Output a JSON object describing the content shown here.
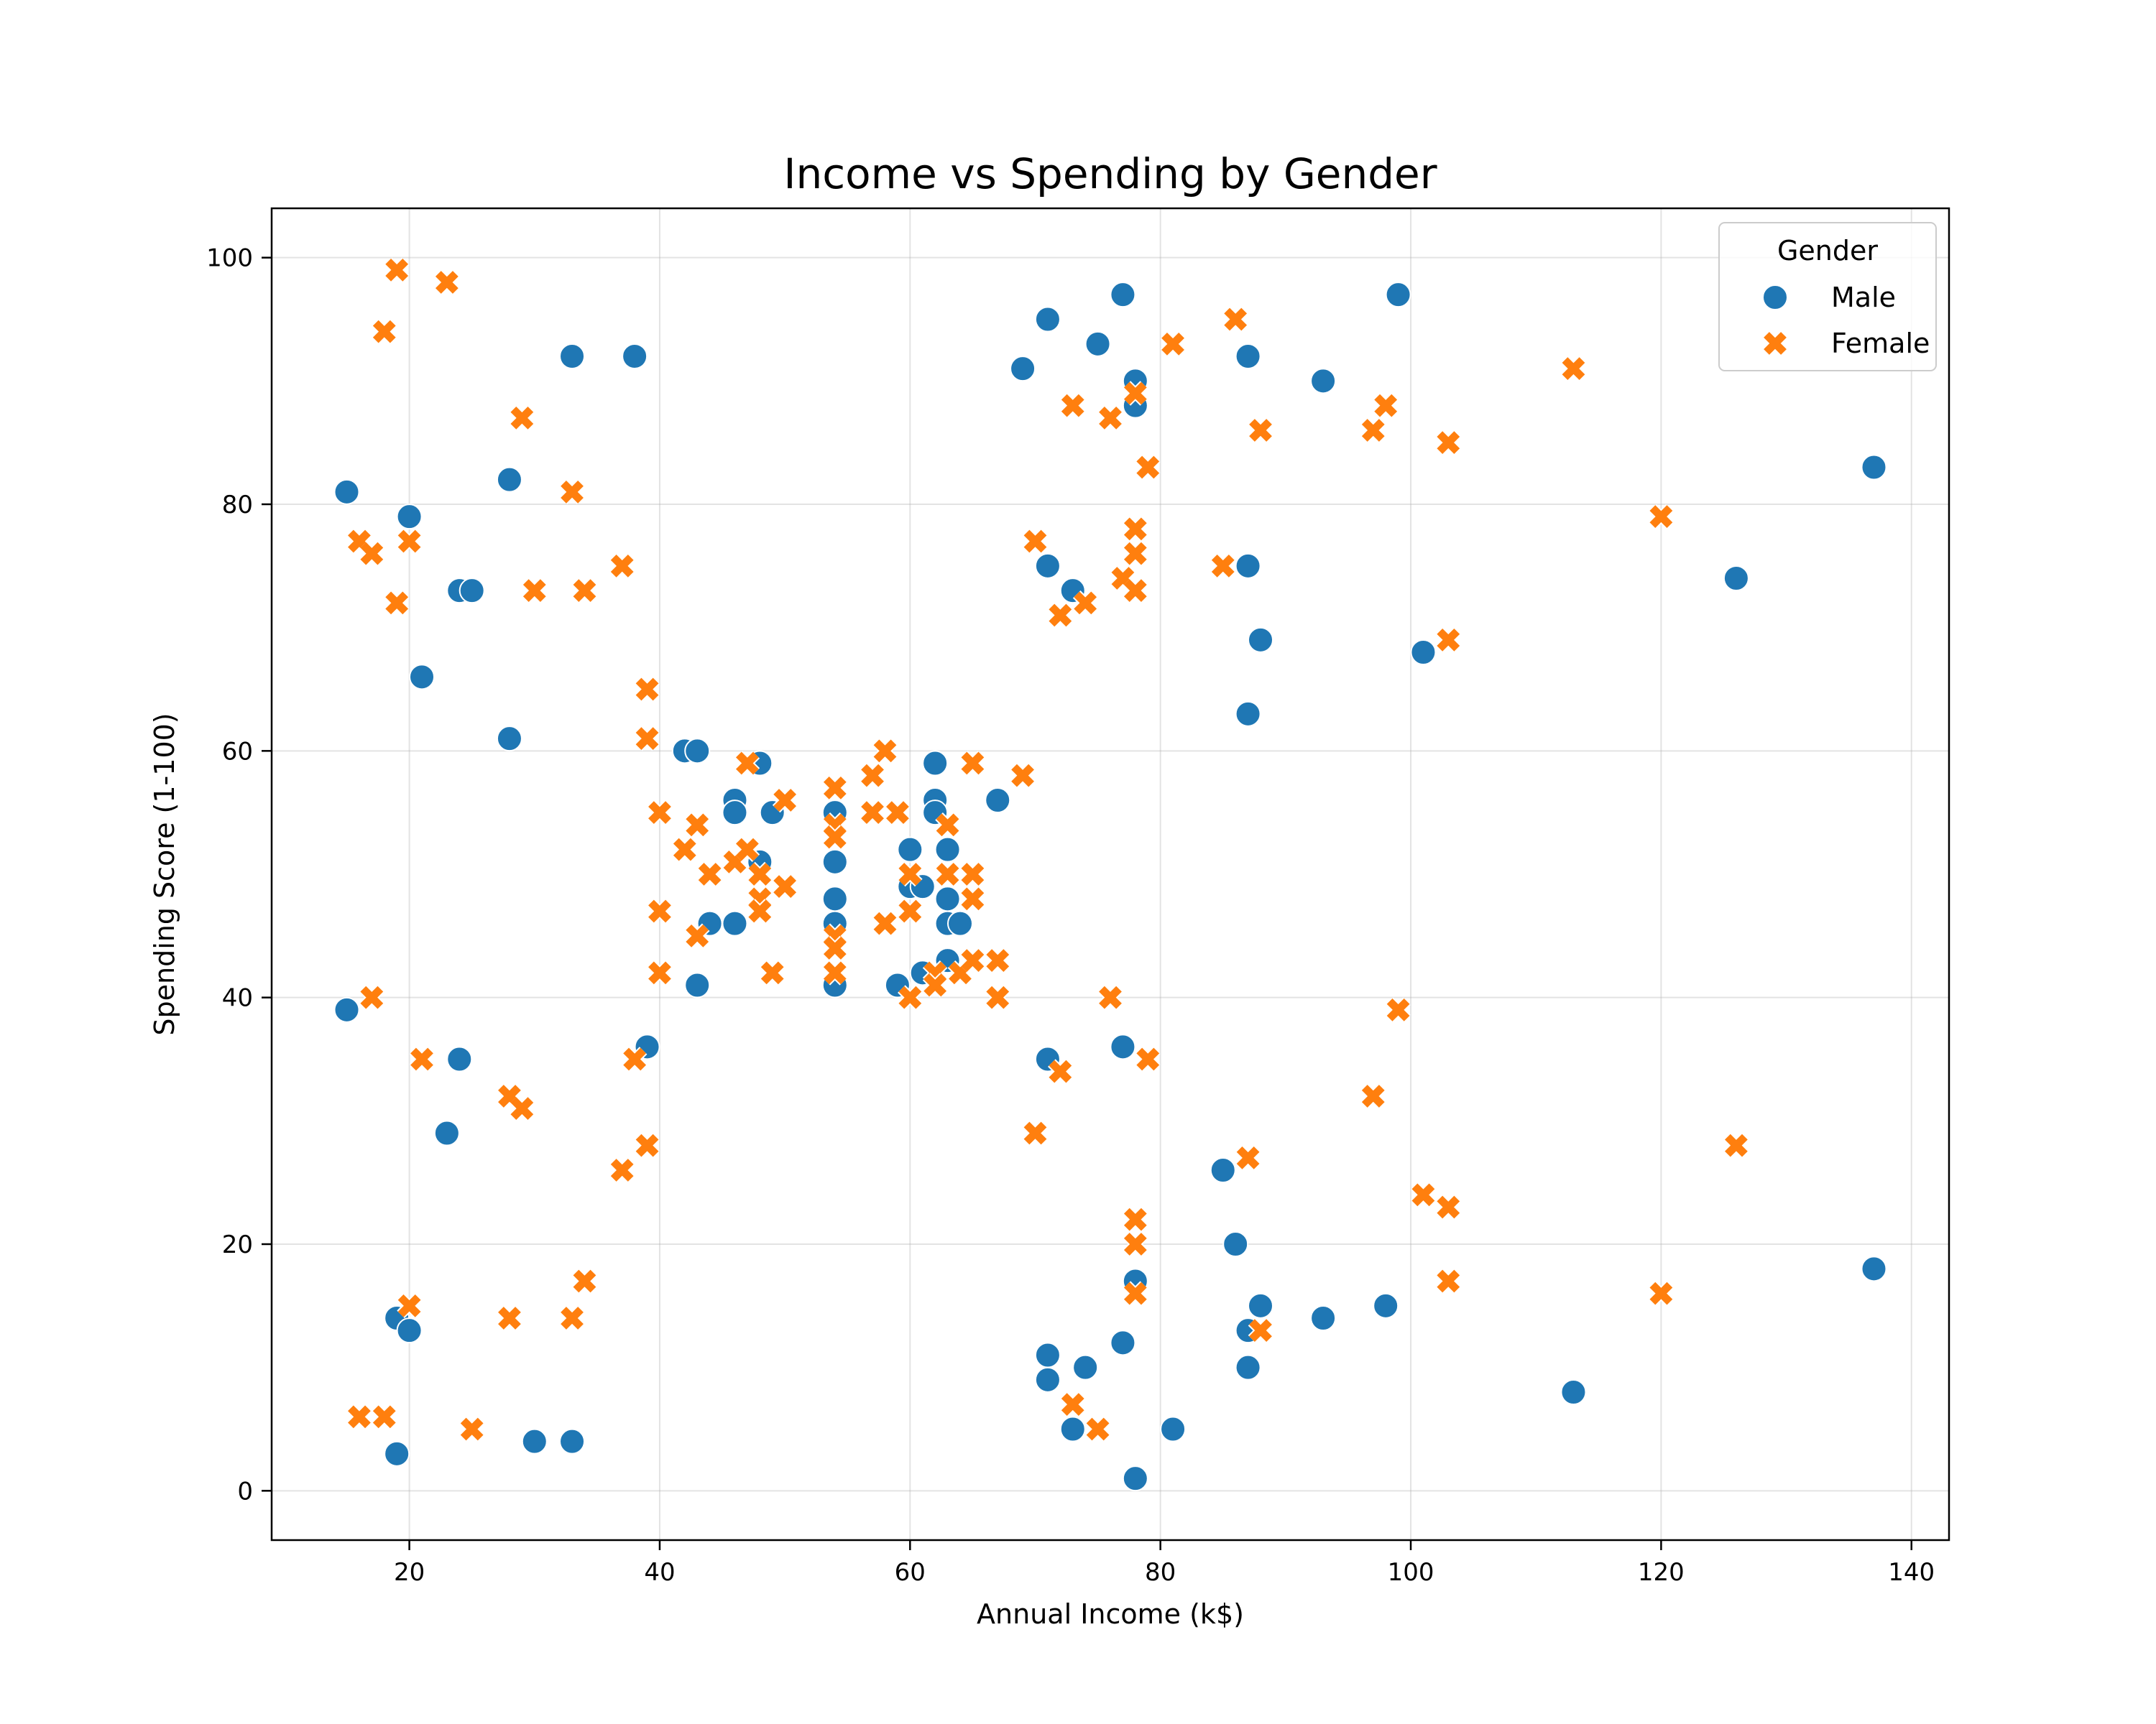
{
  "chart_data": {
    "type": "scatter",
    "title": "Income vs Spending by Gender",
    "xlabel": "Annual Income (k$)",
    "ylabel": "Spending Score (1-100)",
    "xlim": [
      9,
      143
    ],
    "ylim": [
      -4,
      104
    ],
    "xticks": [
      20,
      40,
      60,
      80,
      100,
      120,
      140
    ],
    "yticks": [
      0,
      20,
      40,
      60,
      80,
      100
    ],
    "grid": true,
    "legend": {
      "title": "Gender",
      "placement": "top-right"
    },
    "series": [
      {
        "name": "Male",
        "marker": "circle",
        "color": "#1f77b4",
        "points": [
          [
            15,
            81
          ],
          [
            15,
            39
          ],
          [
            19,
            14
          ],
          [
            19,
            3
          ],
          [
            20,
            79
          ],
          [
            20,
            13
          ],
          [
            21,
            66
          ],
          [
            23,
            29
          ],
          [
            24,
            73
          ],
          [
            24,
            35
          ],
          [
            25,
            73
          ],
          [
            28,
            82
          ],
          [
            28,
            61
          ],
          [
            30,
            4
          ],
          [
            33,
            92
          ],
          [
            33,
            4
          ],
          [
            38,
            92
          ],
          [
            39,
            36
          ],
          [
            42,
            60
          ],
          [
            43,
            60
          ],
          [
            43,
            41
          ],
          [
            44,
            46
          ],
          [
            46,
            56
          ],
          [
            46,
            55
          ],
          [
            46,
            46
          ],
          [
            48,
            59
          ],
          [
            48,
            51
          ],
          [
            49,
            55
          ],
          [
            54,
            55
          ],
          [
            54,
            51
          ],
          [
            54,
            48
          ],
          [
            54,
            46
          ],
          [
            54,
            41
          ],
          [
            60,
            52
          ],
          [
            60,
            49
          ],
          [
            59,
            41
          ],
          [
            61,
            49
          ],
          [
            61,
            42
          ],
          [
            62,
            59
          ],
          [
            62,
            56
          ],
          [
            62,
            55
          ],
          [
            63,
            52
          ],
          [
            63,
            48
          ],
          [
            63,
            46
          ],
          [
            63,
            43
          ],
          [
            64,
            46
          ],
          [
            67,
            56
          ],
          [
            69,
            91
          ],
          [
            71,
            95
          ],
          [
            71,
            75
          ],
          [
            71,
            35
          ],
          [
            71,
            11
          ],
          [
            71,
            9
          ],
          [
            73,
            73
          ],
          [
            73,
            5
          ],
          [
            74,
            10
          ],
          [
            75,
            93
          ],
          [
            77,
            97
          ],
          [
            77,
            36
          ],
          [
            77,
            12
          ],
          [
            78,
            90
          ],
          [
            78,
            88
          ],
          [
            78,
            17
          ],
          [
            78,
            1
          ],
          [
            81,
            5
          ],
          [
            85,
            26
          ],
          [
            86,
            20
          ],
          [
            87,
            92
          ],
          [
            87,
            75
          ],
          [
            87,
            63
          ],
          [
            87,
            13
          ],
          [
            87,
            10
          ],
          [
            88,
            69
          ],
          [
            88,
            15
          ],
          [
            93,
            90
          ],
          [
            93,
            14
          ],
          [
            98,
            15
          ],
          [
            99,
            97
          ],
          [
            101,
            68
          ],
          [
            113,
            8
          ],
          [
            126,
            74
          ],
          [
            137,
            83
          ],
          [
            137,
            18
          ]
        ]
      },
      {
        "name": "Female",
        "marker": "x",
        "color": "#ff7f0e",
        "points": [
          [
            16,
            77
          ],
          [
            16,
            6
          ],
          [
            17,
            76
          ],
          [
            17,
            40
          ],
          [
            18,
            94
          ],
          [
            18,
            6
          ],
          [
            19,
            99
          ],
          [
            19,
            72
          ],
          [
            20,
            77
          ],
          [
            20,
            15
          ],
          [
            21,
            35
          ],
          [
            23,
            98
          ],
          [
            25,
            5
          ],
          [
            28,
            32
          ],
          [
            28,
            14
          ],
          [
            29,
            87
          ],
          [
            29,
            31
          ],
          [
            30,
            73
          ],
          [
            33,
            81
          ],
          [
            33,
            14
          ],
          [
            34,
            73
          ],
          [
            34,
            17
          ],
          [
            37,
            75
          ],
          [
            37,
            26
          ],
          [
            38,
            35
          ],
          [
            39,
            65
          ],
          [
            39,
            61
          ],
          [
            39,
            28
          ],
          [
            40,
            55
          ],
          [
            40,
            47
          ],
          [
            40,
            42
          ],
          [
            42,
            52
          ],
          [
            43,
            54
          ],
          [
            43,
            45
          ],
          [
            44,
            50
          ],
          [
            46,
            51
          ],
          [
            47,
            59
          ],
          [
            47,
            52
          ],
          [
            48,
            50
          ],
          [
            48,
            48
          ],
          [
            48,
            47
          ],
          [
            49,
            42
          ],
          [
            50,
            56
          ],
          [
            50,
            49
          ],
          [
            54,
            57
          ],
          [
            54,
            54
          ],
          [
            54,
            53
          ],
          [
            54,
            45
          ],
          [
            54,
            44
          ],
          [
            54,
            42
          ],
          [
            57,
            58
          ],
          [
            57,
            55
          ],
          [
            58,
            60
          ],
          [
            58,
            46
          ],
          [
            59,
            55
          ],
          [
            60,
            50
          ],
          [
            60,
            47
          ],
          [
            60,
            40
          ],
          [
            62,
            42
          ],
          [
            62,
            41
          ],
          [
            63,
            54
          ],
          [
            63,
            50
          ],
          [
            64,
            42
          ],
          [
            65,
            59
          ],
          [
            65,
            50
          ],
          [
            65,
            48
          ],
          [
            65,
            43
          ],
          [
            67,
            43
          ],
          [
            67,
            40
          ],
          [
            69,
            58
          ],
          [
            70,
            77
          ],
          [
            70,
            29
          ],
          [
            72,
            71
          ],
          [
            72,
            34
          ],
          [
            73,
            88
          ],
          [
            73,
            7
          ],
          [
            74,
            72
          ],
          [
            75,
            5
          ],
          [
            76,
            87
          ],
          [
            76,
            40
          ],
          [
            77,
            74
          ],
          [
            78,
            89
          ],
          [
            78,
            78
          ],
          [
            78,
            76
          ],
          [
            78,
            73
          ],
          [
            78,
            22
          ],
          [
            78,
            20
          ],
          [
            78,
            16
          ],
          [
            79,
            83
          ],
          [
            79,
            35
          ],
          [
            81,
            93
          ],
          [
            85,
            75
          ],
          [
            86,
            95
          ],
          [
            87,
            27
          ],
          [
            88,
            86
          ],
          [
            88,
            13
          ],
          [
            97,
            86
          ],
          [
            97,
            32
          ],
          [
            98,
            88
          ],
          [
            99,
            39
          ],
          [
            101,
            24
          ],
          [
            103,
            85
          ],
          [
            103,
            69
          ],
          [
            103,
            23
          ],
          [
            103,
            17
          ],
          [
            113,
            91
          ],
          [
            120,
            79
          ],
          [
            120,
            16
          ],
          [
            126,
            28
          ]
        ]
      }
    ]
  }
}
